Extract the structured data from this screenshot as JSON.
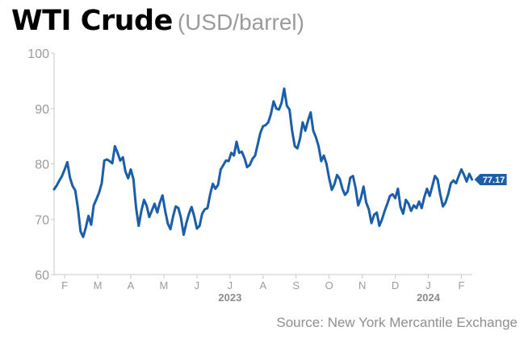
{
  "title": "WTI Crude",
  "subtitle": "(USD/barrel)",
  "source": "Source: New York Mercantile Exchange",
  "colors": {
    "line": "#1a5da8",
    "badge": "#1a5da8",
    "axis": "#c8c8c8",
    "tick_text": "#9b9b9b",
    "year_text": "#8a8a8a"
  },
  "chart_data": {
    "type": "line",
    "title": "WTI Crude",
    "subtitle": "(USD/barrel)",
    "ylabel": "",
    "xlabel": "",
    "ylim": [
      60,
      100
    ],
    "yticks": [
      60,
      70,
      80,
      90,
      100
    ],
    "xlim": [
      0,
      12.4
    ],
    "month_ticks": [
      {
        "label": "F",
        "x": 0.32
      },
      {
        "label": "M",
        "x": 1.32
      },
      {
        "label": "A",
        "x": 2.32
      },
      {
        "label": "M",
        "x": 3.32
      },
      {
        "label": "J",
        "x": 4.32
      },
      {
        "label": "J",
        "x": 5.32
      },
      {
        "label": "A",
        "x": 6.32
      },
      {
        "label": "S",
        "x": 7.32
      },
      {
        "label": "O",
        "x": 8.32
      },
      {
        "label": "N",
        "x": 9.32
      },
      {
        "label": "D",
        "x": 10.32
      },
      {
        "label": "J",
        "x": 11.32
      },
      {
        "label": "F",
        "x": 12.32
      }
    ],
    "year_labels": [
      {
        "label": "2023",
        "x": 5.32
      },
      {
        "label": "2024",
        "x": 11.32
      }
    ],
    "last_value_label": "77.17",
    "series": [
      {
        "points": [
          [
            0.0,
            75.4
          ],
          [
            0.08,
            76.1
          ],
          [
            0.16,
            77.0
          ],
          [
            0.24,
            77.8
          ],
          [
            0.32,
            79.0
          ],
          [
            0.4,
            80.3
          ],
          [
            0.48,
            77.5
          ],
          [
            0.56,
            76.0
          ],
          [
            0.64,
            75.2
          ],
          [
            0.72,
            72.0
          ],
          [
            0.8,
            67.8
          ],
          [
            0.88,
            66.8
          ],
          [
            0.96,
            68.5
          ],
          [
            1.04,
            70.6
          ],
          [
            1.12,
            69.0
          ],
          [
            1.2,
            72.5
          ],
          [
            1.28,
            73.6
          ],
          [
            1.36,
            74.8
          ],
          [
            1.44,
            76.5
          ],
          [
            1.52,
            80.6
          ],
          [
            1.6,
            80.8
          ],
          [
            1.68,
            80.5
          ],
          [
            1.76,
            80.1
          ],
          [
            1.84,
            83.2
          ],
          [
            1.92,
            82.0
          ],
          [
            2.0,
            80.6
          ],
          [
            2.08,
            81.2
          ],
          [
            2.16,
            78.6
          ],
          [
            2.24,
            77.4
          ],
          [
            2.32,
            79.0
          ],
          [
            2.4,
            77.2
          ],
          [
            2.48,
            72.0
          ],
          [
            2.56,
            68.8
          ],
          [
            2.64,
            71.5
          ],
          [
            2.72,
            73.5
          ],
          [
            2.8,
            72.4
          ],
          [
            2.88,
            70.4
          ],
          [
            2.96,
            71.6
          ],
          [
            3.04,
            72.8
          ],
          [
            3.12,
            71.2
          ],
          [
            3.2,
            73.0
          ],
          [
            3.28,
            74.3
          ],
          [
            3.36,
            71.5
          ],
          [
            3.44,
            69.2
          ],
          [
            3.52,
            68.2
          ],
          [
            3.6,
            70.5
          ],
          [
            3.68,
            72.3
          ],
          [
            3.76,
            72.0
          ],
          [
            3.84,
            70.2
          ],
          [
            3.92,
            67.2
          ],
          [
            4.0,
            69.3
          ],
          [
            4.08,
            71.0
          ],
          [
            4.16,
            72.2
          ],
          [
            4.24,
            70.5
          ],
          [
            4.32,
            68.3
          ],
          [
            4.4,
            68.8
          ],
          [
            4.48,
            71.0
          ],
          [
            4.56,
            71.8
          ],
          [
            4.64,
            72.0
          ],
          [
            4.72,
            74.5
          ],
          [
            4.8,
            76.4
          ],
          [
            4.88,
            75.5
          ],
          [
            4.96,
            76.2
          ],
          [
            5.04,
            79.0
          ],
          [
            5.12,
            79.8
          ],
          [
            5.2,
            80.6
          ],
          [
            5.28,
            80.5
          ],
          [
            5.36,
            82.0
          ],
          [
            5.44,
            81.5
          ],
          [
            5.52,
            84.0
          ],
          [
            5.6,
            82.0
          ],
          [
            5.68,
            82.2
          ],
          [
            5.76,
            81.0
          ],
          [
            5.84,
            79.4
          ],
          [
            5.92,
            79.8
          ],
          [
            6.0,
            80.9
          ],
          [
            6.08,
            81.5
          ],
          [
            6.16,
            83.5
          ],
          [
            6.24,
            85.6
          ],
          [
            6.32,
            86.8
          ],
          [
            6.4,
            87.0
          ],
          [
            6.48,
            87.5
          ],
          [
            6.56,
            89.0
          ],
          [
            6.64,
            91.3
          ],
          [
            6.72,
            90.0
          ],
          [
            6.8,
            89.8
          ],
          [
            6.88,
            91.0
          ],
          [
            6.96,
            93.6
          ],
          [
            7.04,
            90.5
          ],
          [
            7.12,
            89.8
          ],
          [
            7.2,
            86.0
          ],
          [
            7.28,
            83.2
          ],
          [
            7.36,
            82.8
          ],
          [
            7.44,
            84.6
          ],
          [
            7.52,
            87.5
          ],
          [
            7.6,
            86.0
          ],
          [
            7.68,
            87.8
          ],
          [
            7.76,
            89.3
          ],
          [
            7.84,
            86.0
          ],
          [
            7.92,
            84.8
          ],
          [
            8.0,
            83.2
          ],
          [
            8.08,
            80.5
          ],
          [
            8.16,
            81.5
          ],
          [
            8.24,
            80.0
          ],
          [
            8.32,
            77.4
          ],
          [
            8.4,
            75.3
          ],
          [
            8.48,
            76.3
          ],
          [
            8.56,
            78.0
          ],
          [
            8.64,
            77.3
          ],
          [
            8.72,
            75.5
          ],
          [
            8.8,
            74.4
          ],
          [
            8.88,
            75.0
          ],
          [
            8.96,
            77.5
          ],
          [
            9.04,
            77.8
          ],
          [
            9.12,
            75.6
          ],
          [
            9.2,
            72.5
          ],
          [
            9.28,
            73.8
          ],
          [
            9.36,
            75.9
          ],
          [
            9.44,
            73.0
          ],
          [
            9.52,
            71.8
          ],
          [
            9.6,
            69.3
          ],
          [
            9.68,
            70.8
          ],
          [
            9.76,
            71.2
          ],
          [
            9.84,
            68.8
          ],
          [
            9.92,
            70.0
          ],
          [
            10.0,
            71.5
          ],
          [
            10.08,
            72.8
          ],
          [
            10.16,
            74.2
          ],
          [
            10.24,
            74.5
          ],
          [
            10.32,
            73.8
          ],
          [
            10.4,
            75.5
          ],
          [
            10.48,
            72.2
          ],
          [
            10.56,
            71.0
          ],
          [
            10.64,
            73.5
          ],
          [
            10.72,
            72.8
          ],
          [
            10.8,
            71.5
          ],
          [
            10.88,
            72.5
          ],
          [
            10.96,
            72.0
          ],
          [
            11.04,
            73.2
          ],
          [
            11.12,
            72.0
          ],
          [
            11.2,
            74.0
          ],
          [
            11.28,
            75.5
          ],
          [
            11.36,
            74.2
          ],
          [
            11.44,
            76.0
          ],
          [
            11.52,
            77.8
          ],
          [
            11.6,
            77.2
          ],
          [
            11.68,
            74.5
          ],
          [
            11.76,
            72.3
          ],
          [
            11.84,
            73.0
          ],
          [
            11.92,
            74.5
          ],
          [
            12.0,
            76.5
          ],
          [
            12.08,
            77.0
          ],
          [
            12.16,
            76.5
          ],
          [
            12.24,
            77.8
          ],
          [
            12.32,
            79.0
          ],
          [
            12.4,
            78.0
          ],
          [
            12.48,
            76.8
          ],
          [
            12.56,
            78.2
          ],
          [
            12.64,
            77.17
          ]
        ]
      }
    ]
  }
}
